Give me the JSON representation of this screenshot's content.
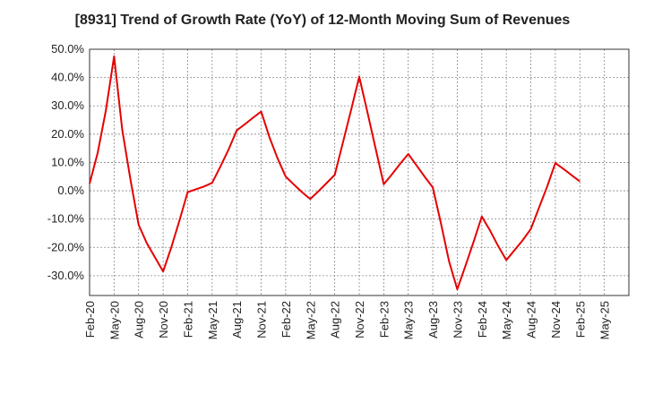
{
  "chart_data": {
    "type": "line",
    "title": "[8931]  Trend of Growth Rate (YoY) of 12-Month Moving Sum of Revenues",
    "xlabel": "",
    "ylabel": "",
    "ylim": [
      -37,
      50
    ],
    "y_ticks": [
      "50.0%",
      "40.0%",
      "30.0%",
      "20.0%",
      "10.0%",
      "0.0%",
      "-10.0%",
      "-20.0%",
      "-30.0%"
    ],
    "y_tick_values": [
      50,
      40,
      30,
      20,
      10,
      0,
      -10,
      -20,
      -30
    ],
    "x_ticks": [
      "Feb-20",
      "May-20",
      "Aug-20",
      "Nov-20",
      "Feb-21",
      "May-21",
      "Aug-21",
      "Nov-21",
      "Feb-22",
      "May-22",
      "Aug-22",
      "Nov-22",
      "Feb-23",
      "May-23",
      "Aug-23",
      "Nov-23",
      "Feb-24",
      "May-24",
      "Aug-24",
      "Nov-24",
      "Feb-25",
      "May-25"
    ],
    "grid": true,
    "series": [
      {
        "color": "#e60000",
        "x": [
          "Feb-20",
          "Mar-20",
          "Apr-20",
          "May-20",
          "Jun-20",
          "Jul-20",
          "Aug-20",
          "Sep-20",
          "Oct-20",
          "Nov-20",
          "Dec-20",
          "Jan-21",
          "Feb-21",
          "Mar-21",
          "Apr-21",
          "May-21",
          "Jun-21",
          "Jul-21",
          "Aug-21",
          "Sep-21",
          "Oct-21",
          "Nov-21",
          "Dec-21",
          "Jan-22",
          "Feb-22",
          "Mar-22",
          "Apr-22",
          "May-22",
          "Jun-22",
          "Jul-22",
          "Aug-22",
          "Sep-22",
          "Oct-22",
          "Nov-22",
          "Dec-22",
          "Jan-23",
          "Feb-23",
          "Mar-23",
          "Apr-23",
          "May-23",
          "Jun-23",
          "Jul-23",
          "Aug-23",
          "Sep-23",
          "Oct-23",
          "Nov-23",
          "Dec-23",
          "Jan-24",
          "Feb-24",
          "Mar-24",
          "Apr-24",
          "May-24",
          "Jun-24",
          "Jul-24",
          "Aug-24",
          "Sep-24",
          "Oct-24",
          "Nov-24",
          "Dec-24",
          "Jan-25",
          "Feb-25"
        ],
        "values": [
          2.5,
          13.5,
          28.5,
          47.5,
          21.5,
          4.0,
          -12.0,
          -18.5,
          -23.5,
          -28.5,
          -20.0,
          -10.5,
          -0.5,
          0.5,
          1.5,
          2.8,
          8.5,
          14.5,
          21.3,
          23.5,
          25.8,
          28.0,
          19.0,
          11.5,
          5.0,
          2.2,
          -0.5,
          -2.9,
          -0.2,
          2.7,
          5.6,
          17.0,
          28.5,
          40.3,
          27.8,
          15.0,
          2.3,
          5.8,
          9.5,
          13.0,
          9.0,
          5.0,
          1.2,
          -11.5,
          -25.0,
          -34.8,
          -26.5,
          -18.0,
          -9.1,
          -14.0,
          -19.5,
          -24.5,
          -21.0,
          -17.5,
          -13.5,
          -6.0,
          1.5,
          9.8,
          7.7,
          5.5,
          3.3
        ]
      }
    ]
  }
}
